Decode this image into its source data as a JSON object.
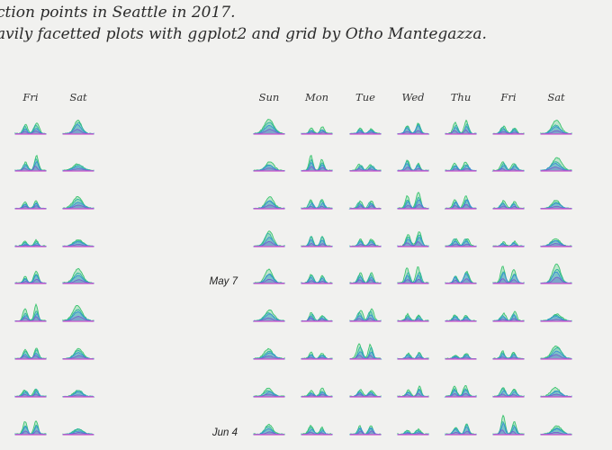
{
  "title": {
    "line1": "ction points in Seattle in 2017.",
    "line2": "avily facetted plots with ggplot2 and grid by Otho Mantegazza."
  },
  "colors": {
    "background": "#f1f1ef",
    "series": [
      "#3ac46e",
      "#2fb5a3",
      "#3b8fd6",
      "#7a5fd0"
    ],
    "baseline": "#cc55cc"
  },
  "chart_data": {
    "type": "area",
    "left_panel": {
      "days": [
        "Fri",
        "Sat"
      ],
      "rows": 9
    },
    "right_panel": {
      "days": [
        "Sun",
        "Mon",
        "Tue",
        "Wed",
        "Thu",
        "Fri",
        "Sat"
      ],
      "rows": 10,
      "row_labels": [
        {
          "row": 4,
          "label": "May 7"
        },
        {
          "row": 8,
          "label": "Jun 4"
        }
      ]
    },
    "series": [
      {
        "name": "",
        "color": "#3ac46e"
      },
      {
        "name": "",
        "color": "#2fb5a3"
      },
      {
        "name": "",
        "color": "#3b8fd6"
      },
      {
        "name": "",
        "color": "#7a5fd0"
      }
    ],
    "grid": false
  }
}
